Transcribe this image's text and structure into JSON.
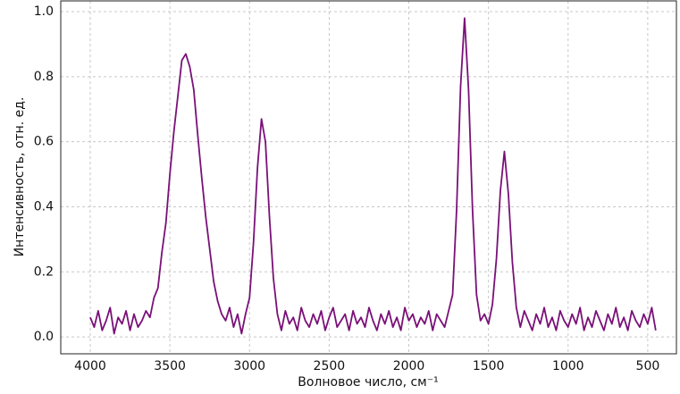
{
  "chart_data": {
    "type": "line",
    "xlabel": "Волновое число, см⁻¹",
    "ylabel": "Интенсивность, отн. ед.",
    "x": [
      4000,
      3975,
      3950,
      3925,
      3900,
      3875,
      3850,
      3825,
      3800,
      3775,
      3750,
      3725,
      3700,
      3675,
      3650,
      3625,
      3600,
      3575,
      3550,
      3525,
      3500,
      3475,
      3450,
      3425,
      3400,
      3375,
      3350,
      3325,
      3300,
      3275,
      3250,
      3225,
      3200,
      3175,
      3150,
      3125,
      3100,
      3075,
      3050,
      3025,
      3000,
      2975,
      2950,
      2925,
      2900,
      2875,
      2850,
      2825,
      2800,
      2775,
      2750,
      2725,
      2700,
      2675,
      2650,
      2625,
      2600,
      2575,
      2550,
      2525,
      2500,
      2475,
      2450,
      2425,
      2400,
      2375,
      2350,
      2325,
      2300,
      2275,
      2250,
      2225,
      2200,
      2175,
      2150,
      2125,
      2100,
      2075,
      2050,
      2025,
      2000,
      1975,
      1950,
      1925,
      1900,
      1875,
      1850,
      1825,
      1800,
      1775,
      1750,
      1725,
      1700,
      1675,
      1650,
      1625,
      1600,
      1575,
      1550,
      1525,
      1500,
      1475,
      1450,
      1425,
      1400,
      1375,
      1350,
      1325,
      1300,
      1275,
      1250,
      1225,
      1200,
      1175,
      1150,
      1125,
      1100,
      1075,
      1050,
      1025,
      1000,
      975,
      950,
      925,
      900,
      875,
      850,
      825,
      800,
      775,
      750,
      725,
      700,
      675,
      650,
      625,
      600,
      575,
      550,
      525,
      500,
      475,
      450
    ],
    "series": [
      {
        "color": "#7a1078",
        "values": [
          0.06,
          0.03,
          0.08,
          0.02,
          0.05,
          0.09,
          0.01,
          0.06,
          0.04,
          0.08,
          0.02,
          0.07,
          0.03,
          0.05,
          0.08,
          0.06,
          0.12,
          0.15,
          0.26,
          0.35,
          0.5,
          0.63,
          0.74,
          0.85,
          0.87,
          0.83,
          0.76,
          0.62,
          0.49,
          0.37,
          0.27,
          0.17,
          0.11,
          0.07,
          0.05,
          0.09,
          0.03,
          0.07,
          0.01,
          0.07,
          0.12,
          0.29,
          0.52,
          0.67,
          0.6,
          0.37,
          0.18,
          0.07,
          0.02,
          0.08,
          0.04,
          0.06,
          0.02,
          0.09,
          0.05,
          0.03,
          0.07,
          0.04,
          0.08,
          0.02,
          0.06,
          0.09,
          0.03,
          0.05,
          0.07,
          0.02,
          0.08,
          0.04,
          0.06,
          0.03,
          0.09,
          0.05,
          0.02,
          0.07,
          0.04,
          0.08,
          0.03,
          0.06,
          0.02,
          0.09,
          0.05,
          0.07,
          0.03,
          0.06,
          0.04,
          0.08,
          0.02,
          0.07,
          0.05,
          0.03,
          0.08,
          0.13,
          0.39,
          0.77,
          0.98,
          0.76,
          0.39,
          0.13,
          0.05,
          0.07,
          0.04,
          0.1,
          0.24,
          0.45,
          0.57,
          0.44,
          0.23,
          0.09,
          0.03,
          0.08,
          0.05,
          0.02,
          0.07,
          0.04,
          0.09,
          0.03,
          0.06,
          0.02,
          0.08,
          0.05,
          0.03,
          0.07,
          0.04,
          0.09,
          0.02,
          0.06,
          0.03,
          0.08,
          0.05,
          0.02,
          0.07,
          0.04,
          0.09,
          0.03,
          0.06,
          0.02,
          0.08,
          0.05,
          0.03,
          0.07,
          0.04,
          0.09,
          0.02
        ]
      }
    ],
    "xlim": [
      4185,
      320
    ],
    "ylim": [
      -0.052,
      1.033
    ],
    "xticks": [
      4000,
      3500,
      3000,
      2500,
      2000,
      1500,
      1000,
      500
    ],
    "yticks": [
      {
        "value": 0,
        "label": "0.0"
      },
      0.2,
      0.4,
      0.6,
      0.8,
      {
        "value": 1,
        "label": "1.0"
      }
    ],
    "grid": true
  }
}
